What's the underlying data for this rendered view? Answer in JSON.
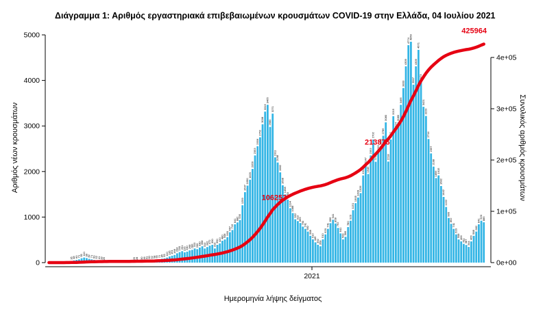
{
  "chart_data": {
    "type": "bar",
    "title": "Διάγραμμα 1: Αριθμός εργαστηριακά επιβεβαιωμένων κρουσμάτων COVID-19 στην Ελλάδα, 04 Ιουλίου 2021",
    "xlabel": "Ημερομηνία λήψης δείγματος",
    "ylabel_left": "Αριθμός νέων κρουσμάτων",
    "ylabel_right": "Συνολικός αριθμός κρουσμάτων",
    "yleft_ticks": [
      "0",
      "1000",
      "2000",
      "3000",
      "4000",
      "5000"
    ],
    "yleft_tick_values": [
      0,
      1000,
      2000,
      3000,
      4000,
      5000
    ],
    "ylim_left": [
      0,
      5000
    ],
    "yright_ticks": [
      "0e+00",
      "1e+05",
      "2e+05",
      "3e+05",
      "4e+05"
    ],
    "yright_tick_values": [
      0,
      100000,
      200000,
      300000,
      400000
    ],
    "ylim_right": [
      0,
      400000
    ],
    "x_ticks": [
      {
        "label": "2021",
        "index": 105
      }
    ],
    "grid": false,
    "legend": "none",
    "bar_color": "#33b5e5",
    "line_color": "#e60012",
    "label_color": "#000000",
    "annotation_color": "#e60012",
    "series": [
      {
        "name": "daily_new_cases",
        "type": "bar"
      },
      {
        "name": "cumulative_cases",
        "type": "line"
      }
    ],
    "values": [
      0,
      0,
      1,
      2,
      3,
      5,
      9,
      15,
      21,
      35,
      48,
      60,
      71,
      95,
      110,
      99,
      82,
      71,
      60,
      52,
      41,
      33,
      25,
      20,
      15,
      12,
      10,
      10,
      12,
      9,
      14,
      18,
      22,
      19,
      25,
      28,
      24,
      30,
      35,
      41,
      50,
      52,
      58,
      65,
      72,
      85,
      93,
      110,
      135,
      151,
      168,
      204,
      230,
      251,
      225,
      240,
      268,
      280,
      310,
      295,
      330,
      358,
      310,
      342,
      372,
      390,
      310,
      390,
      420,
      480,
      508,
      560,
      667,
      715,
      841,
      882,
      935,
      1259,
      1547,
      1690,
      1820,
      2056,
      2353,
      2556,
      2752,
      3038,
      3316,
      3465,
      2980,
      3271,
      2311,
      2198,
      1982,
      1698,
      1498,
      1383,
      1194,
      1088,
      952,
      912,
      869,
      790,
      741,
      682,
      588,
      510,
      445,
      392,
      358,
      510,
      620,
      741,
      866,
      941,
      858,
      762,
      641,
      509,
      566,
      780,
      920,
      1151,
      1305,
      1428,
      1526,
      1913,
      2147,
      1946,
      2353,
      2702,
      2215,
      2415,
      2556,
      2786,
      3080,
      2218,
      2702,
      3215,
      2914,
      3080,
      3465,
      3833,
      4309,
      4774,
      4850,
      3907,
      4309,
      4671,
      3973,
      3421,
      3220,
      2714,
      2397,
      2108,
      1856,
      1915,
      1682,
      1442,
      1222,
      980,
      852,
      741,
      620,
      508,
      466,
      411,
      387,
      344,
      466,
      588,
      682,
      841,
      920,
      885
    ],
    "annotations": [
      {
        "label": "106253",
        "value": 106253,
        "final": false
      },
      {
        "label": "213876",
        "value": 213876,
        "final": false
      },
      {
        "label": "425964",
        "value": 425964,
        "final": true
      }
    ],
    "cumulative_total": 425964
  }
}
